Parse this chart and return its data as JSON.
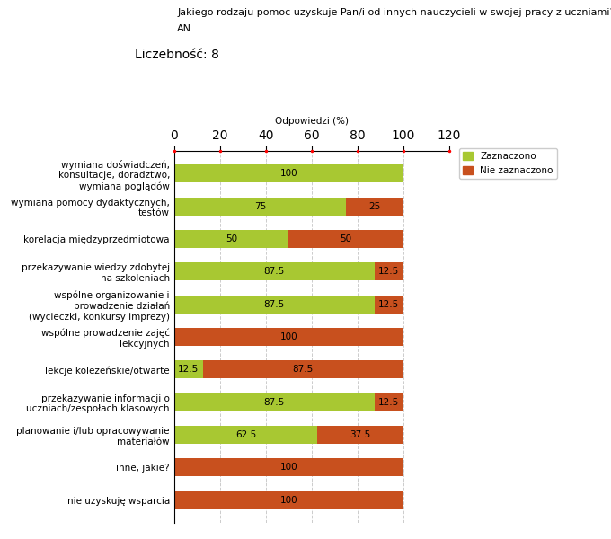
{
  "title_line1": "Jakiego rodzaju pomoc uzyskuje Pan/i od innych nauczycieli w swojej pracy z uczniami?",
  "title_line2": "AN",
  "subtitle": "Liczebność: 8",
  "xlabel": "Odpowiedzi (%)",
  "xlim": [
    0,
    120
  ],
  "xticks": [
    0,
    20,
    40,
    60,
    80,
    100,
    120
  ],
  "color_green": "#a8c832",
  "color_orange": "#c8501e",
  "legend_green": "Zaznaczono",
  "legend_orange": "Nie zaznaczono",
  "categories": [
    "wymiana doświadczeń,\nkonsultacje, doradztwo,\nwymiana poglądów",
    "wymiana pomocy dydaktycznych,\ntestów",
    "korelacja międzyprzedmiotowa",
    "przekazywanie wiedzy zdobytej\nna szkoleniach",
    "wspólne organizowanie i\nprowadzenie działań\n(wycieczki, konkursy imprezy)",
    "wspólne prowadzenie zajęć\nlekcyjnych",
    "lekcje koleżeńskie/otwarte",
    "przekazywanie informacji o\nuczniach/zespołach klasowych",
    "planowanie i/lub opracowywanie\nmateriałów",
    "inne, jakie?",
    "nie uzyskuję wsparcia"
  ],
  "green_values": [
    100,
    75,
    50,
    87.5,
    87.5,
    0,
    12.5,
    87.5,
    62.5,
    0,
    0
  ],
  "orange_values": [
    0,
    25,
    50,
    12.5,
    12.5,
    100,
    87.5,
    12.5,
    37.5,
    100,
    100
  ],
  "bar_height": 0.55,
  "background_color": "#ffffff",
  "grid_color": "#cccccc",
  "font_size_title": 8,
  "font_size_subtitle": 10,
  "font_size_labels": 7.5,
  "font_size_ticks": 8,
  "font_size_bar_text": 7.5
}
